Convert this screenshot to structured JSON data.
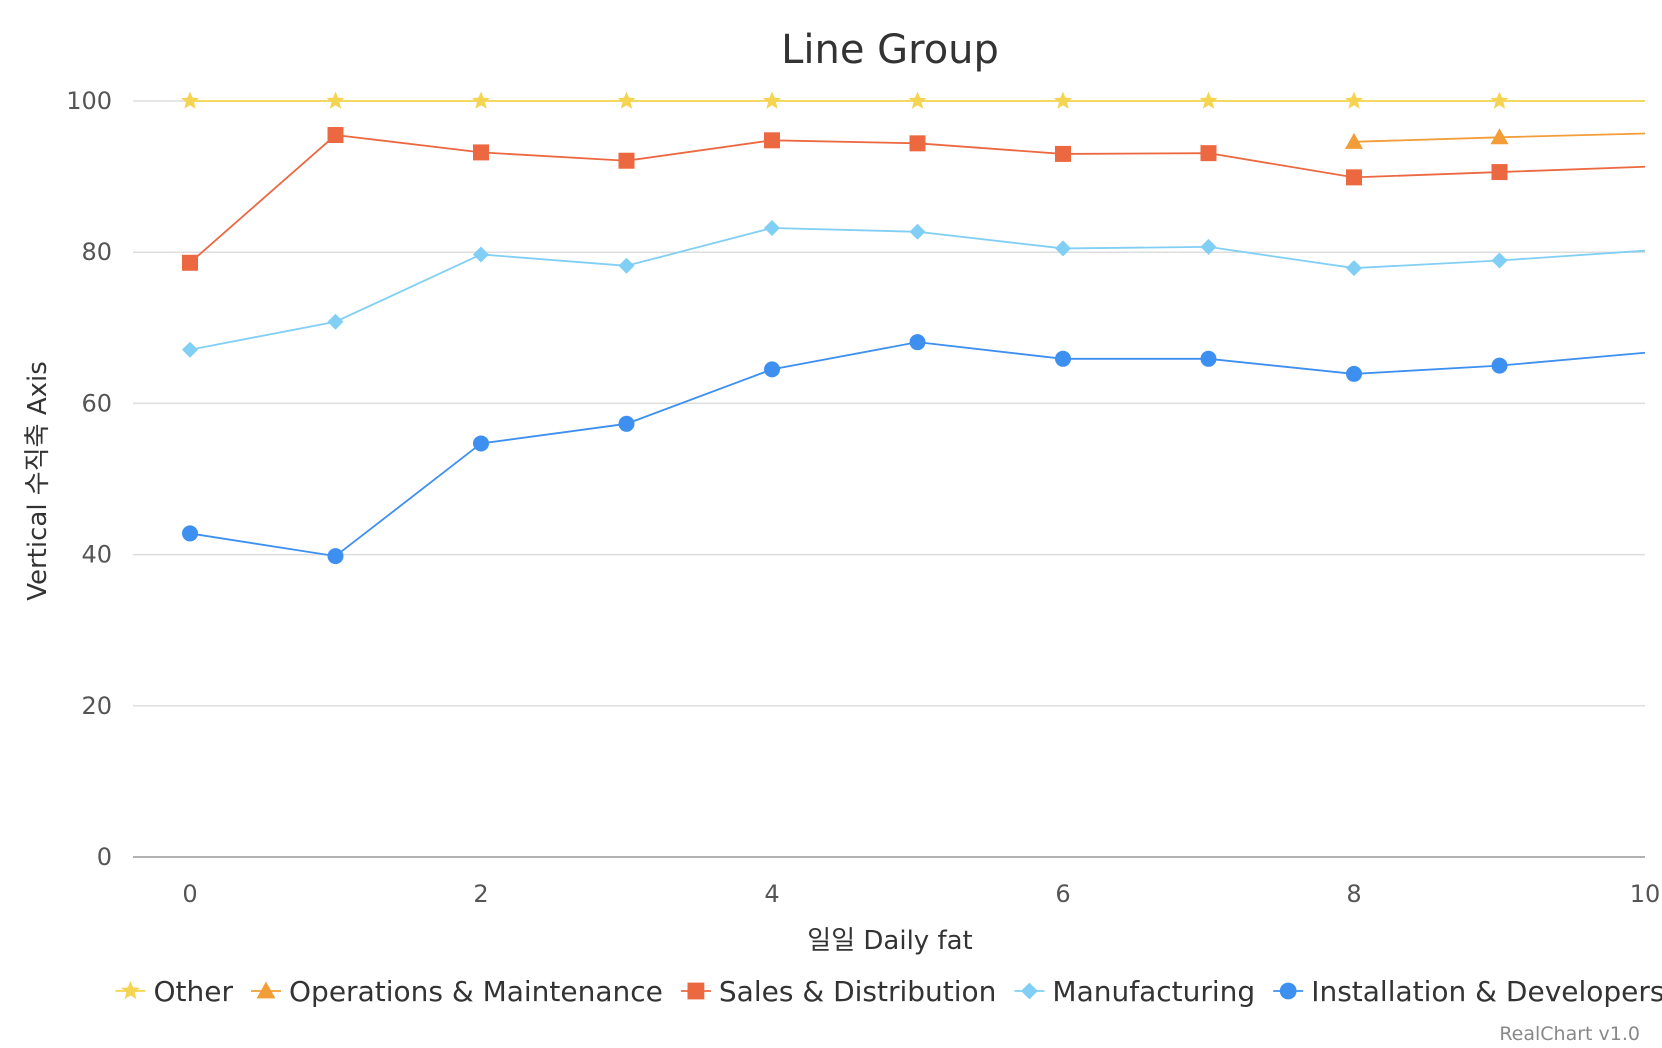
{
  "chart_data": {
    "type": "line",
    "title": "Line Group",
    "xlabel": "일일 Daily fat",
    "ylabel": "Vertical 수직축 Axis",
    "credit": "RealChart v1.0",
    "xlim": [
      0,
      10
    ],
    "ylim": [
      0,
      100
    ],
    "x_ticks": [
      0,
      2,
      4,
      6,
      8,
      10
    ],
    "y_ticks": [
      0,
      20,
      40,
      60,
      80,
      100
    ],
    "grid": true,
    "legend_position": "bottom",
    "x": [
      0,
      1,
      2,
      3,
      4,
      5,
      6,
      7,
      8,
      9,
      10
    ],
    "series": [
      {
        "name": "Other",
        "marker": "star",
        "color": "#f5d451",
        "values": [
          100,
          100,
          100,
          100,
          100,
          100,
          100,
          100,
          100,
          100,
          100
        ]
      },
      {
        "name": "Operations & Maintenance",
        "marker": "triangle",
        "color": "#f29d38",
        "values": [
          null,
          null,
          null,
          null,
          null,
          null,
          null,
          null,
          94.6,
          95.2,
          95.7
        ]
      },
      {
        "name": "Sales & Distribution",
        "marker": "square",
        "color": "#ec6841",
        "values": [
          78.6,
          95.5,
          93.2,
          92.1,
          94.8,
          94.4,
          93.0,
          93.1,
          89.9,
          90.6,
          91.3
        ]
      },
      {
        "name": "Manufacturing",
        "marker": "diamond",
        "color": "#81cff4",
        "values": [
          67.1,
          70.8,
          79.7,
          78.2,
          83.2,
          82.7,
          80.5,
          80.7,
          77.9,
          78.9,
          80.2
        ]
      },
      {
        "name": "Installation & Developers",
        "marker": "circle",
        "color": "#3d8ff0",
        "values": [
          42.8,
          39.8,
          54.7,
          57.3,
          64.5,
          68.1,
          65.9,
          65.9,
          63.9,
          65.0,
          66.7
        ]
      }
    ]
  }
}
